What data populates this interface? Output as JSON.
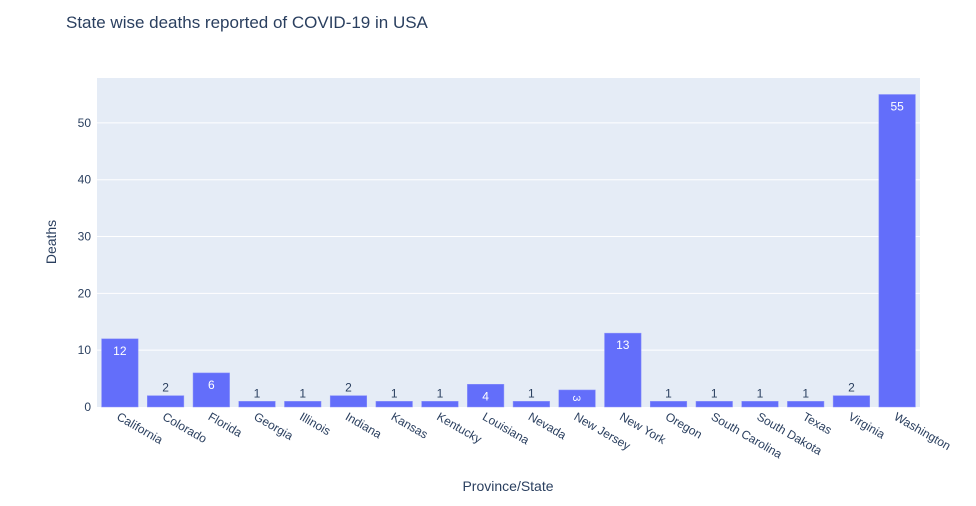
{
  "chart_data": {
    "type": "bar",
    "title": "State wise deaths reported of COVID-19 in USA",
    "xlabel": "Province/State",
    "ylabel": "Deaths",
    "categories": [
      "California",
      "Colorado",
      "Florida",
      "Georgia",
      "Illinois",
      "Indiana",
      "Kansas",
      "Kentucky",
      "Louisiana",
      "Nevada",
      "New Jersey",
      "New York",
      "Oregon",
      "South Carolina",
      "South Dakota",
      "Texas",
      "Virginia",
      "Washington"
    ],
    "values": [
      12,
      2,
      6,
      1,
      1,
      2,
      1,
      1,
      4,
      1,
      3,
      13,
      1,
      1,
      1,
      1,
      2,
      55
    ],
    "ylim": [
      0,
      57.9
    ],
    "yticks": [
      0,
      10,
      20,
      30,
      40,
      50
    ],
    "grid": true,
    "colors": {
      "bar": "#636efa",
      "plot_bg": "#e5ecf6",
      "text": "#2a3f5f"
    }
  }
}
